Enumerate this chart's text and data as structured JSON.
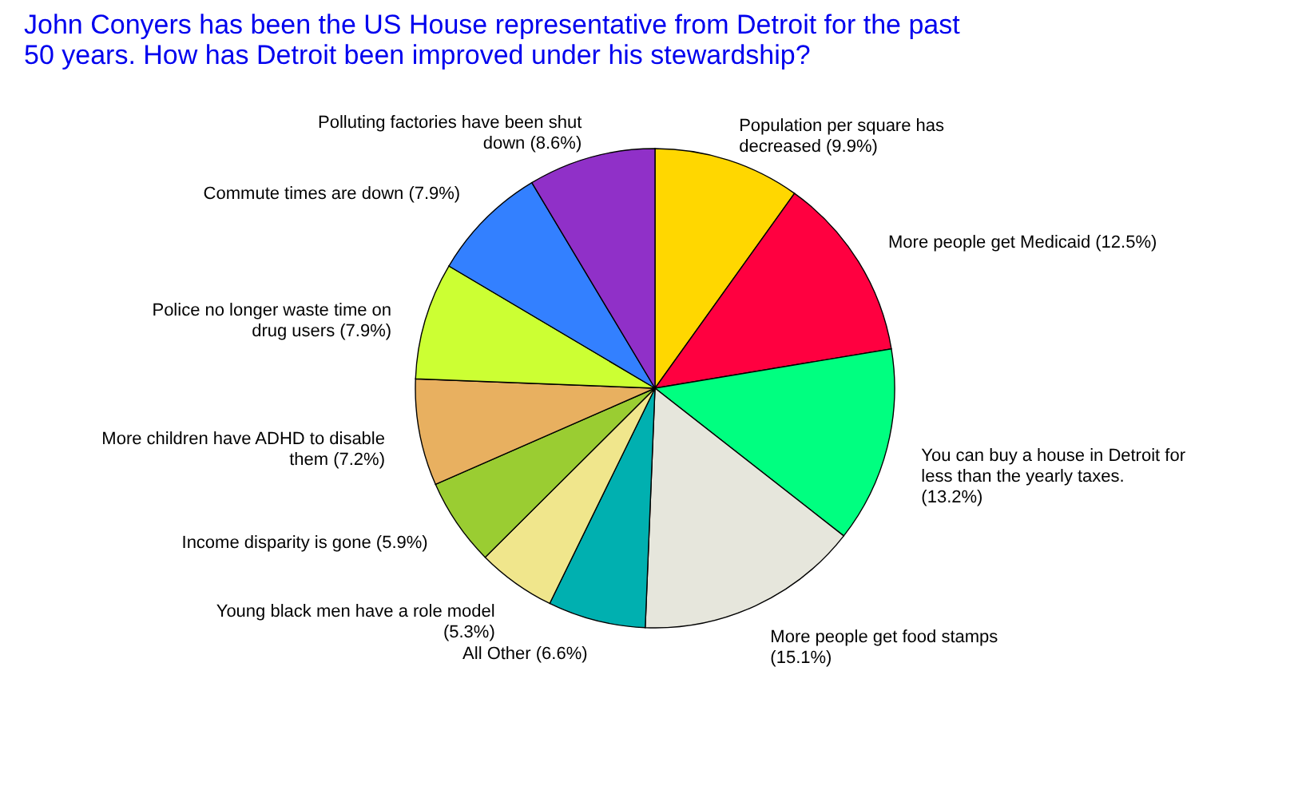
{
  "chart_data": {
    "type": "pie",
    "title": "John Conyers has been the US House representative from Detroit for the past\n50 years.   How has Detroit been improved under his stewardship?",
    "categories": [
      "Population per square has decreased",
      "More people get Medicaid",
      "You can buy a house in Detroit for less than the yearly taxes.",
      "More people get food stamps",
      "All Other",
      "Young black men have a role model",
      "Income disparity is gone",
      "More children have ADHD to disable them",
      "Police no longer waste time on drug users",
      "Commute times are down",
      "Polluting factories have been shut down"
    ],
    "values": [
      9.9,
      12.5,
      13.2,
      15.1,
      6.6,
      5.3,
      5.9,
      7.2,
      7.9,
      7.9,
      8.6
    ],
    "value_labels": [
      "(9.9%)",
      "(12.5%)",
      "(13.2%)",
      "(15.1%)",
      "(6.6%)",
      "(5.3%)",
      "(5.9%)",
      "(7.2%)",
      "(7.9%)",
      "(7.9%)",
      "(8.6%)"
    ],
    "colors": [
      "#ffd700",
      "#ff0040",
      "#00ff80",
      "#e6e6dc",
      "#00b0b0",
      "#f0e68c",
      "#9acd32",
      "#e8b060",
      "#ccff33",
      "#3380ff",
      "#9030c8"
    ]
  }
}
